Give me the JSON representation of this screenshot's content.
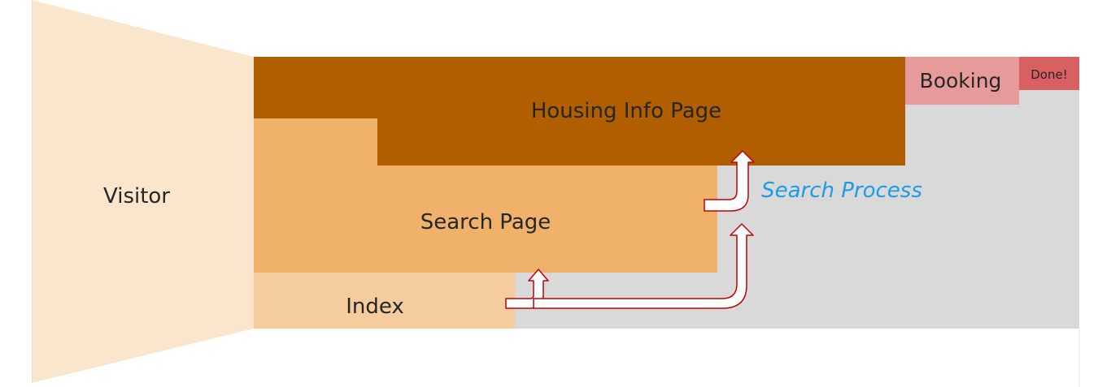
{
  "labels": {
    "visitor": "Visitor",
    "housing_info": "Housing Info Page",
    "search_page": "Search Page",
    "index": "Index",
    "booking": "Booking",
    "done": "Done!",
    "process": "Search Process"
  },
  "colors": {
    "visitor_funnel": "#fae6cd",
    "housing_info": "#b05e00",
    "search_page": "#f0b26b",
    "index": "#f5cc9e",
    "background_panel": "#d9d9d9",
    "booking": "#e69a9a",
    "done": "#d96060",
    "arrow_fill": "#ffffff",
    "arrow_stroke": "#c00000",
    "process_text": "#1e9be6"
  }
}
